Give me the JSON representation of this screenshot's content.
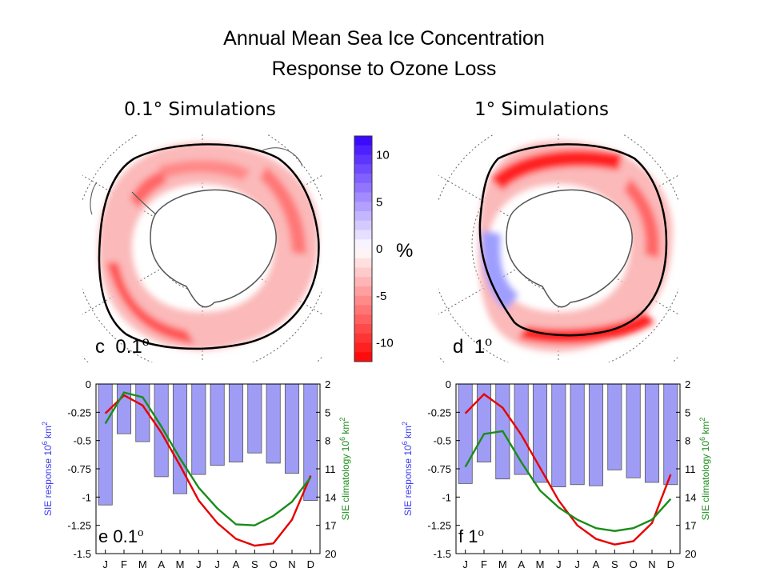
{
  "header": {
    "title_line1": "Annual Mean Sea Ice Concentration",
    "title_line2": "Response to Ozone Loss",
    "left_subtitle": "0.1° Simulations",
    "right_subtitle": "1° Simulations"
  },
  "maps": [
    {
      "panel": "c",
      "res": "0.1",
      "deg": "o"
    },
    {
      "panel": "d",
      "res": "1",
      "deg": "o"
    }
  ],
  "colorbar": {
    "ticks": [
      "10",
      "5",
      "0",
      "-5",
      "-10"
    ],
    "tick_values": [
      10,
      5,
      0,
      -5,
      -10
    ],
    "range": [
      -12,
      12
    ],
    "unit": "%",
    "colors": {
      "negative": "#ff0000",
      "positive": "#3300ff",
      "zero": "#ffffff"
    }
  },
  "chart_data": [
    {
      "type": "bar",
      "panel": "e",
      "label": "e  0.1",
      "label_sup": "o",
      "categories": [
        "J",
        "F",
        "M",
        "A",
        "M",
        "J",
        "J",
        "A",
        "S",
        "O",
        "N",
        "D"
      ],
      "series": [
        {
          "name": "SIE response",
          "type": "bar",
          "axis": "left",
          "color": "#9f9cf5",
          "values": [
            -1.07,
            -0.44,
            -0.51,
            -0.82,
            -0.97,
            -0.8,
            -0.72,
            -0.69,
            -0.61,
            -0.7,
            -0.79,
            -1.03
          ]
        },
        {
          "name": "SIE response line",
          "type": "line",
          "axis": "left",
          "color": "#e60000",
          "values": [
            -0.26,
            -0.1,
            -0.19,
            -0.43,
            -0.72,
            -1.03,
            -1.23,
            -1.37,
            -1.43,
            -1.41,
            -1.2,
            -0.81
          ]
        },
        {
          "name": "SIE climatology line",
          "type": "line",
          "axis": "right",
          "color": "#1a8c1a",
          "values": [
            6.2,
            2.9,
            3.4,
            6.5,
            9.9,
            13.0,
            15.2,
            16.9,
            17.0,
            16.0,
            14.5,
            11.9
          ]
        }
      ],
      "ylabel_left": "SIE response 10",
      "ylabel_left_exp": "6",
      "ylabel_left_unit": " km",
      "ylabel_left_unit_exp": "2",
      "ylabel_right": "SIE climatology 10",
      "ylabel_right_exp": "6",
      "ylabel_right_unit": " km",
      "ylabel_right_unit_exp": "2",
      "ylim_left": [
        -1.5,
        0
      ],
      "yticks_left": [
        "0",
        "-0.25",
        "-0.5",
        "-0.75",
        "-1",
        "-1.25",
        "-1.5"
      ],
      "ylim_right": [
        20,
        2
      ],
      "yticks_right": [
        "2",
        "5",
        "8",
        "11",
        "14",
        "17",
        "20"
      ],
      "grid": false
    },
    {
      "type": "bar",
      "panel": "f",
      "label": "f  1",
      "label_sup": "o",
      "categories": [
        "J",
        "F",
        "M",
        "A",
        "M",
        "J",
        "J",
        "A",
        "S",
        "O",
        "N",
        "D"
      ],
      "series": [
        {
          "name": "SIE response",
          "type": "bar",
          "axis": "left",
          "color": "#9f9cf5",
          "values": [
            -0.88,
            -0.69,
            -0.84,
            -0.8,
            -0.87,
            -0.91,
            -0.89,
            -0.9,
            -0.76,
            -0.83,
            -0.87,
            -0.89
          ]
        },
        {
          "name": "SIE response line",
          "type": "line",
          "axis": "left",
          "color": "#e60000",
          "values": [
            -0.26,
            -0.09,
            -0.21,
            -0.45,
            -0.74,
            -1.03,
            -1.25,
            -1.37,
            -1.42,
            -1.39,
            -1.23,
            -0.8
          ]
        },
        {
          "name": "SIE climatology line",
          "type": "line",
          "axis": "right",
          "color": "#1a8c1a",
          "values": [
            10.8,
            7.3,
            7.0,
            10.3,
            13.3,
            15.1,
            16.4,
            17.3,
            17.6,
            17.3,
            16.4,
            14.2
          ]
        }
      ],
      "ylabel_left": "SIE response 10",
      "ylabel_left_exp": "6",
      "ylabel_left_unit": " km",
      "ylabel_left_unit_exp": "2",
      "ylabel_right": "SIE climatology 10",
      "ylabel_right_exp": "6",
      "ylabel_right_unit": " km",
      "ylabel_right_unit_exp": "2",
      "ylim_left": [
        -1.5,
        0
      ],
      "yticks_left": [
        "0",
        "-0.25",
        "-0.5",
        "-0.75",
        "-1",
        "-1.25",
        "-1.5"
      ],
      "ylim_right": [
        20,
        2
      ],
      "yticks_right": [
        "2",
        "5",
        "8",
        "11",
        "14",
        "17",
        "20"
      ],
      "grid": false
    }
  ]
}
